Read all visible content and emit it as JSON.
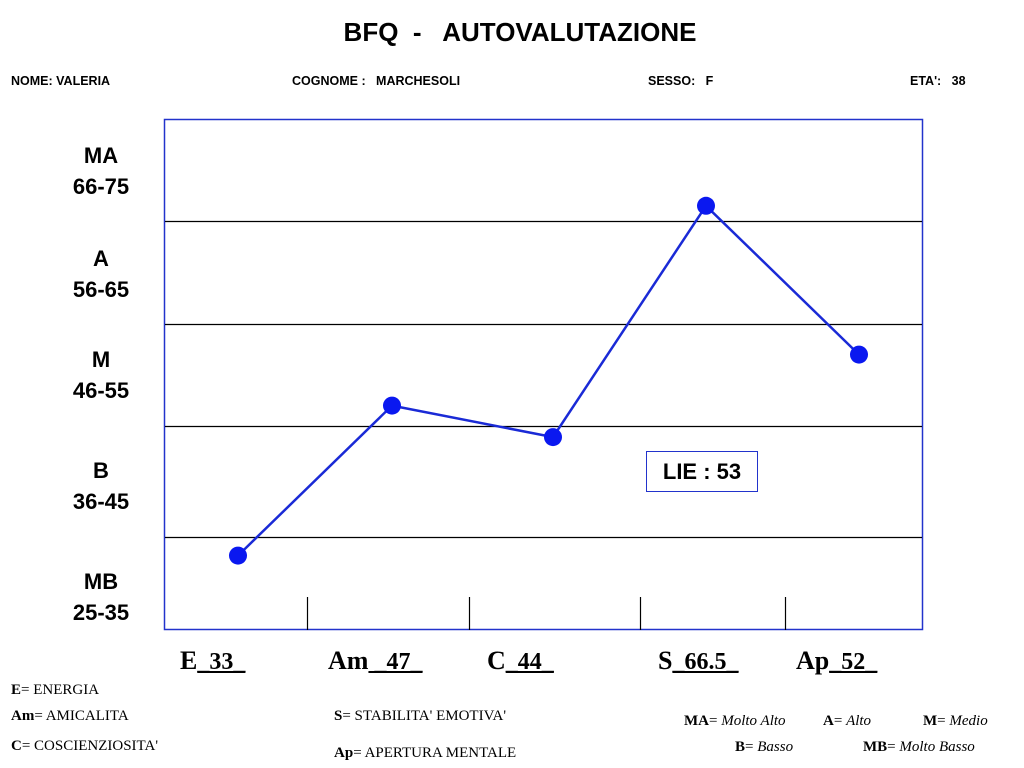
{
  "header": {
    "title": "BFQ  -   AUTOVALUTAZIONE",
    "nome": "NOME: VALERIA",
    "cognome": "COGNOME :   MARCHESOLI",
    "sesso": "SESSO:   F",
    "eta": "ETA':   38"
  },
  "bands": [
    {
      "code": "MA",
      "range": "66-75"
    },
    {
      "code": "A",
      "range": "56-65"
    },
    {
      "code": "M",
      "range": "46-55"
    },
    {
      "code": "B",
      "range": "36-45"
    },
    {
      "code": "MB",
      "range": "25-35"
    }
  ],
  "lie": "LIE : 53",
  "scores": [
    {
      "abbr": "E",
      "text": "_33_"
    },
    {
      "abbr": "Am",
      "text": " _47_"
    },
    {
      "abbr": "C",
      "text": "_44_"
    },
    {
      "abbr": "S",
      "text": "_66.5_"
    },
    {
      "abbr": "Ap",
      "text": "_52_"
    }
  ],
  "legend": {
    "e_abbr": "E",
    "e_text": "= ENERGIA",
    "am_abbr": "Am",
    "am_text": "= AMICALITA",
    "c_abbr": "C",
    "c_text": "= COSCIENZIOSITA'",
    "s_abbr": "S",
    "s_text": "= STABILITA' EMOTIVA'",
    "ap_abbr": "Ap",
    "ap_text": "= APERTURA MENTALE",
    "ma_abbr": "MA",
    "ma_eq": "= ",
    "ma_text": "Molto Alto",
    "a_abbr": "A",
    "a_eq": "= ",
    "a_text": "Alto",
    "m_abbr": "M",
    "m_eq": "= ",
    "m_text": "Medio",
    "b_abbr": "B",
    "b_eq": "= ",
    "b_text": "Basso",
    "mb_abbr": "MB",
    "mb_eq": "= ",
    "mb_text": "Molto Basso"
  },
  "chart_data": {
    "type": "line",
    "categories": [
      "E",
      "Am",
      "C",
      "S",
      "Ap"
    ],
    "values": [
      33,
      47,
      44,
      66.5,
      52
    ],
    "ylim": [
      25,
      75
    ],
    "y_bands": [
      "MA 66-75",
      "A 56-65",
      "M 46-55",
      "B 36-45",
      "MB 25-35"
    ],
    "grid": true,
    "line_color": "#1a2ad6",
    "marker_color": "#0a18f0",
    "frame_color": "#2233cc"
  }
}
